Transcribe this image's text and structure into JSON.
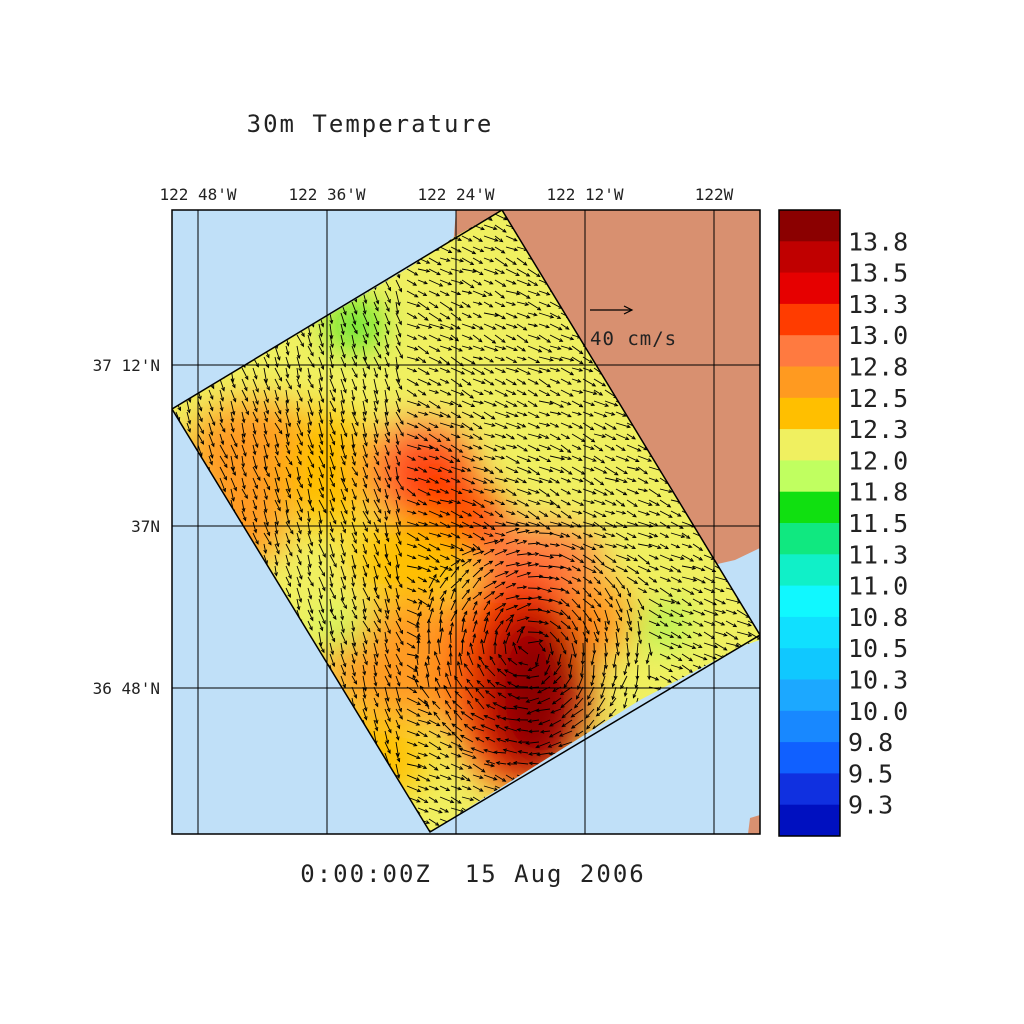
{
  "title": "30m Temperature",
  "timestamp": "0:00:00Z  15 Aug 2006",
  "lon_labels": [
    "122 48'W",
    "122 36'W",
    "122 24'W",
    "122 12'W",
    "122W"
  ],
  "lat_labels": [
    "37 12'N",
    "37N",
    "36 48'N"
  ],
  "reference_vector": {
    "label": "40 cm/s",
    "speed": 40,
    "units": "cm/s"
  },
  "colorbar": {
    "labels": [
      "13.8",
      "13.5",
      "13.3",
      "13.0",
      "12.8",
      "12.5",
      "12.3",
      "12.0",
      "11.8",
      "11.5",
      "11.3",
      "11.0",
      "10.8",
      "10.5",
      "10.3",
      "10.0",
      "9.8",
      "9.5",
      "9.3"
    ],
    "colors": [
      "#8b0000",
      "#c00000",
      "#e60000",
      "#ff3c00",
      "#ff7a40",
      "#ff9a20",
      "#ffbf00",
      "#f0f060",
      "#c0ff60",
      "#10e010",
      "#10e880",
      "#10f0c8",
      "#10f8ff",
      "#10e0ff",
      "#10c8ff",
      "#1ca8ff",
      "#1888ff",
      "#1060ff",
      "#1030e0",
      "#0010c0"
    ]
  },
  "colors": {
    "ocean": "#c0e0f8",
    "land": "#d89070",
    "grid": "#000000"
  }
}
